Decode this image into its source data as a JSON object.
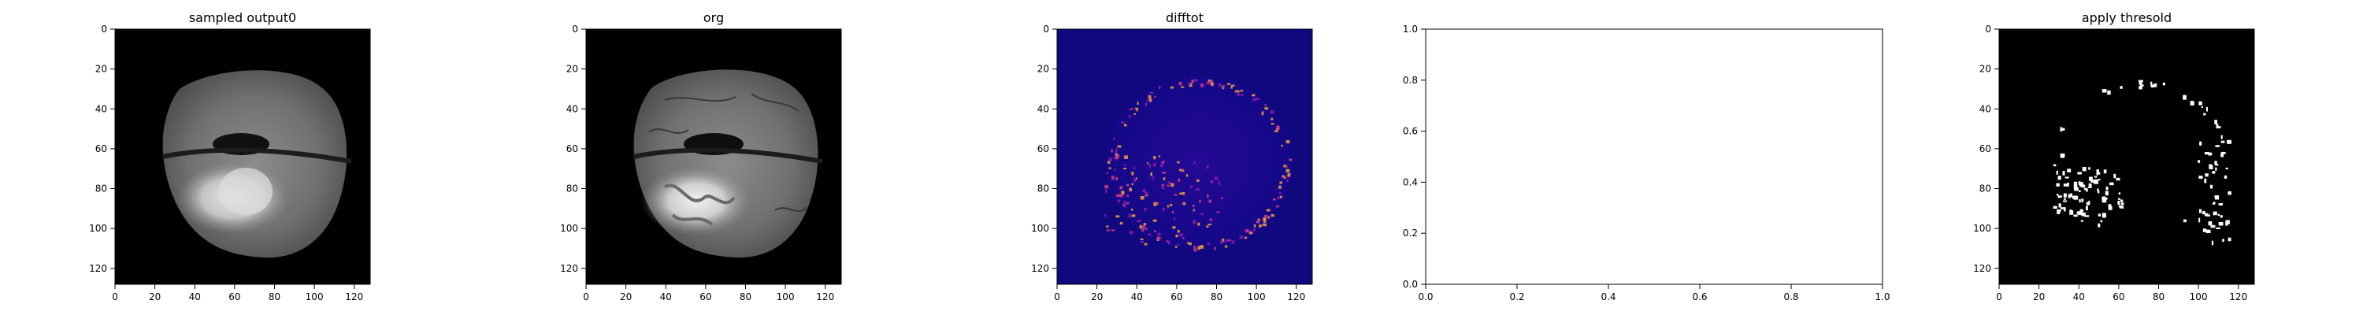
{
  "chart_data": [
    {
      "type": "heatmap",
      "title": "sampled output0",
      "colormap": "gray",
      "image": "brain-mri-slice-sampled",
      "xlim": [
        0,
        128
      ],
      "ylim": [
        128,
        0
      ],
      "xticks": [
        "0",
        "20",
        "40",
        "60",
        "80",
        "100",
        "120"
      ],
      "yticks": [
        "0",
        "20",
        "40",
        "60",
        "80",
        "100",
        "120"
      ]
    },
    {
      "type": "heatmap",
      "title": "org",
      "colormap": "gray",
      "image": "brain-mri-slice-original",
      "xlim": [
        0,
        128
      ],
      "ylim": [
        128,
        0
      ],
      "xticks": [
        "0",
        "20",
        "40",
        "60",
        "80",
        "100",
        "120"
      ],
      "yticks": [
        "0",
        "20",
        "40",
        "60",
        "80",
        "100",
        "120"
      ]
    },
    {
      "type": "heatmap",
      "title": "difftot",
      "colormap": "plasma",
      "image": "difference-map",
      "xlim": [
        0,
        128
      ],
      "ylim": [
        128,
        0
      ],
      "xticks": [
        "0",
        "20",
        "40",
        "60",
        "80",
        "100",
        "120"
      ],
      "yticks": [
        "0",
        "20",
        "40",
        "60",
        "80",
        "100",
        "120"
      ]
    },
    {
      "type": "line",
      "title": "",
      "series": [],
      "xlim": [
        0,
        1
      ],
      "ylim": [
        0,
        1
      ],
      "xticks": [
        "0.0",
        "0.2",
        "0.4",
        "0.6",
        "0.8",
        "1.0"
      ],
      "yticks": [
        "0.0",
        "0.2",
        "0.4",
        "0.6",
        "0.8",
        "1.0"
      ]
    },
    {
      "type": "heatmap",
      "title": "apply thresold",
      "colormap": "binary",
      "image": "threshold-mask",
      "xlim": [
        0,
        128
      ],
      "ylim": [
        128,
        0
      ],
      "xticks": [
        "0",
        "20",
        "40",
        "60",
        "80",
        "100",
        "120"
      ],
      "yticks": [
        "0",
        "20",
        "40",
        "60",
        "80",
        "100",
        "120"
      ]
    }
  ]
}
